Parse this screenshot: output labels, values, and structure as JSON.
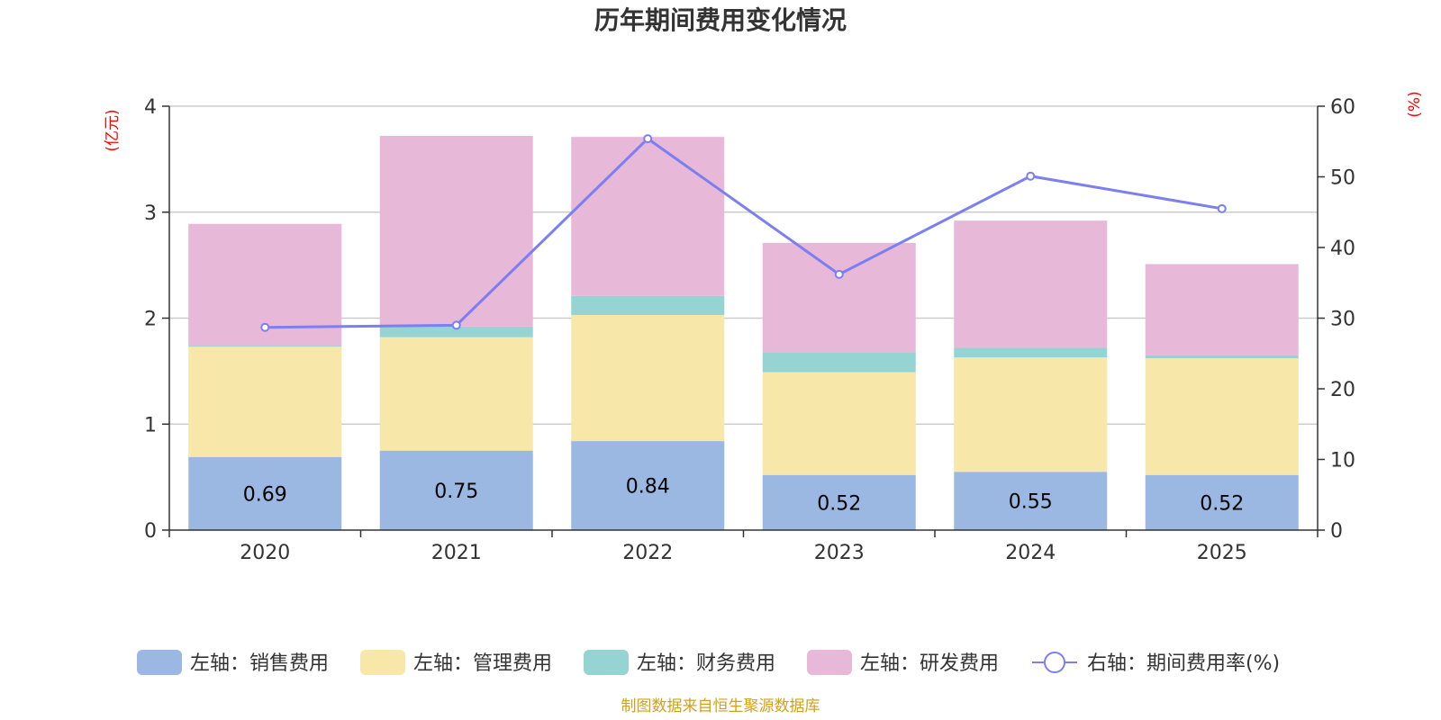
{
  "chart_data": {
    "type": "bar",
    "title": "历年期间费用变化情况",
    "categories": [
      "2020",
      "2021",
      "2022",
      "2023",
      "2024",
      "2025"
    ],
    "left_axis": {
      "unit": "(亿元)",
      "min": 0,
      "max": 4,
      "ticks": [
        "0",
        "1",
        "2",
        "3",
        "4"
      ]
    },
    "right_axis": {
      "unit": "(%)",
      "min": 0,
      "max": 60,
      "ticks": [
        "0",
        "10",
        "20",
        "30",
        "40",
        "50",
        "60"
      ]
    },
    "series": [
      {
        "name": "左轴：销售费用",
        "axis": "left",
        "kind": "bar",
        "color": "#9bb8e2",
        "values": [
          0.69,
          0.75,
          0.84,
          0.52,
          0.55,
          0.52
        ],
        "labels": [
          "0.69",
          "0.75",
          "0.84",
          "0.52",
          "0.55",
          "0.52"
        ]
      },
      {
        "name": "左轴：管理费用",
        "axis": "left",
        "kind": "bar",
        "color": "#f7e7a9",
        "values": [
          1.04,
          1.07,
          1.19,
          0.97,
          1.08,
          1.1
        ]
      },
      {
        "name": "左轴：财务费用",
        "axis": "left",
        "kind": "bar",
        "color": "#96d4d4",
        "values": [
          0.01,
          0.1,
          0.18,
          0.19,
          0.09,
          0.03
        ]
      },
      {
        "name": "左轴：研发费用",
        "axis": "left",
        "kind": "bar",
        "color": "#e8b8d8",
        "values": [
          1.15,
          1.8,
          1.5,
          1.03,
          1.2,
          0.86
        ]
      },
      {
        "name": "右轴：期间费用率(%)",
        "axis": "right",
        "kind": "line",
        "color": "#7b7ff0",
        "values": [
          28.7,
          29.0,
          55.4,
          36.2,
          50.1,
          45.5
        ]
      }
    ],
    "grid": true,
    "legend_position": "bottom",
    "source": "制图数据来自恒生聚源数据库",
    "unit_color": "#ff0000",
    "source_color": "#d4a017"
  }
}
